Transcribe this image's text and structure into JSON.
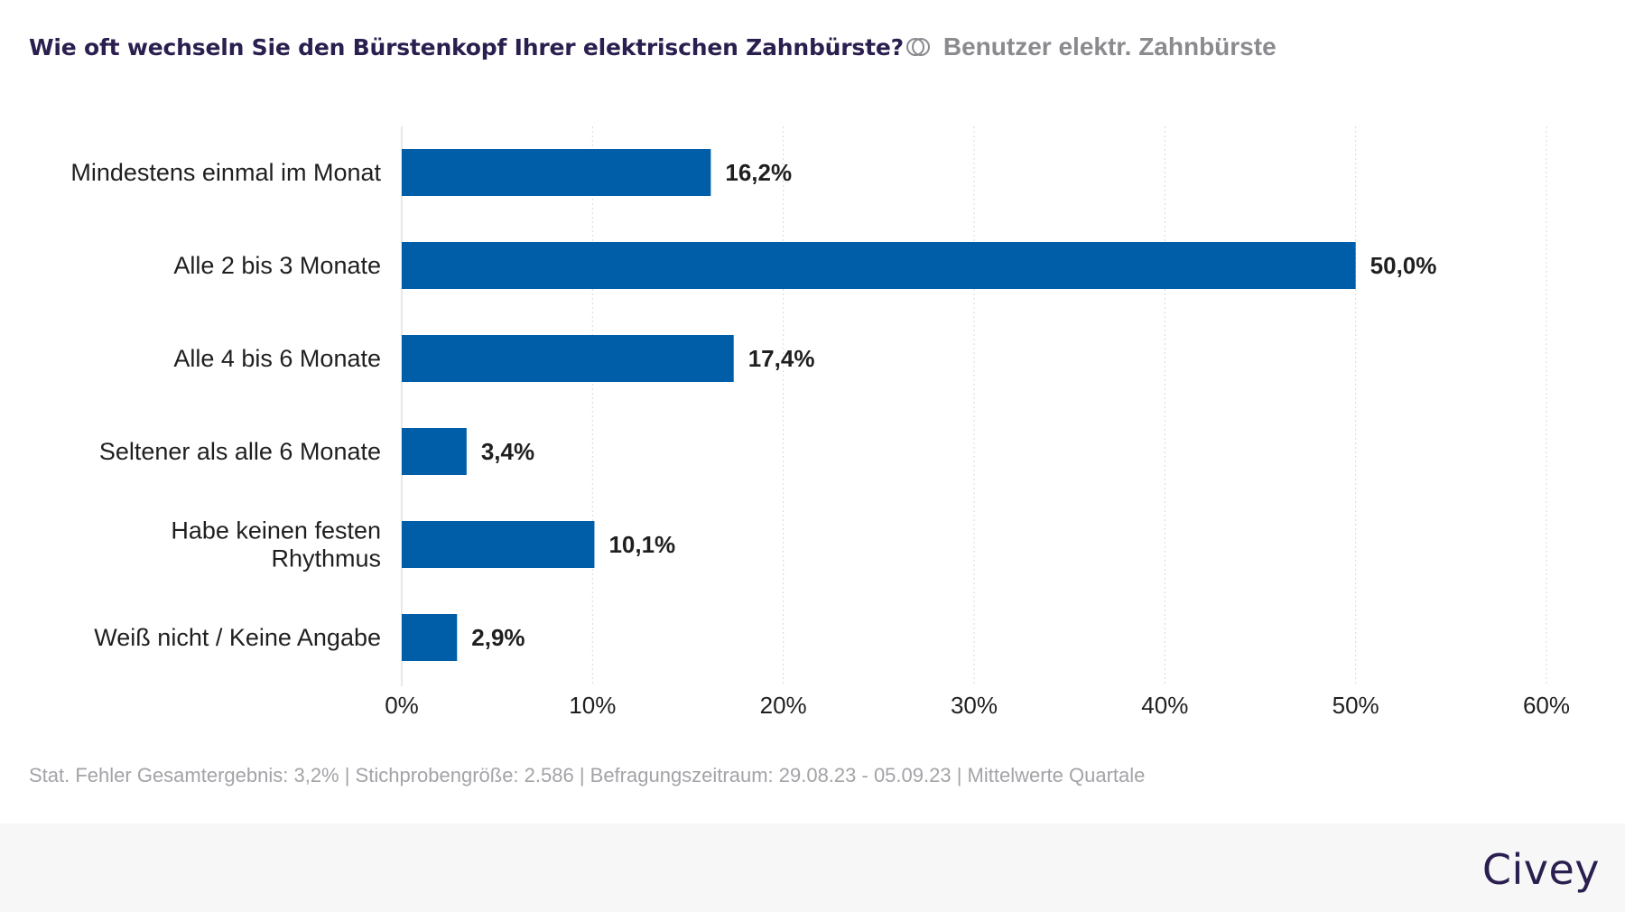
{
  "header": {
    "title": "Wie oft wechseln Sie den Bürstenkopf Ihrer elektrischen Zahnbürste?",
    "filter_icon": "overlap-circles-icon",
    "filter_label": "Benutzer elektr. Zahnbürste"
  },
  "chart_data": {
    "type": "bar",
    "orientation": "horizontal",
    "categories": [
      [
        "Mindestens einmal im Monat"
      ],
      [
        "Alle 2 bis 3 Monate"
      ],
      [
        "Alle 4 bis 6 Monate"
      ],
      [
        "Seltener als alle 6 Monate"
      ],
      [
        "Habe keinen festen",
        "Rhythmus"
      ],
      [
        "Weiß nicht / Keine Angabe"
      ]
    ],
    "values": [
      16.2,
      50.0,
      17.4,
      3.4,
      10.1,
      2.9
    ],
    "value_labels": [
      "16,2%",
      "50,0%",
      "17,4%",
      "3,4%",
      "10,1%",
      "2,9%"
    ],
    "xlim": [
      0,
      60
    ],
    "ticks": [
      0,
      10,
      20,
      30,
      40,
      50,
      60
    ],
    "tick_labels": [
      "0%",
      "10%",
      "20%",
      "30%",
      "40%",
      "50%",
      "60%"
    ],
    "grid": true,
    "bar_color": "#005ea8"
  },
  "footnote": "Stat. Fehler Gesamtergebnis: 3,2% | Stichprobengröße: 2.586 | Befragungszeitraum: 29.08.23 - 05.09.23 | Mittelwerte Quartale",
  "brand": "Civey"
}
